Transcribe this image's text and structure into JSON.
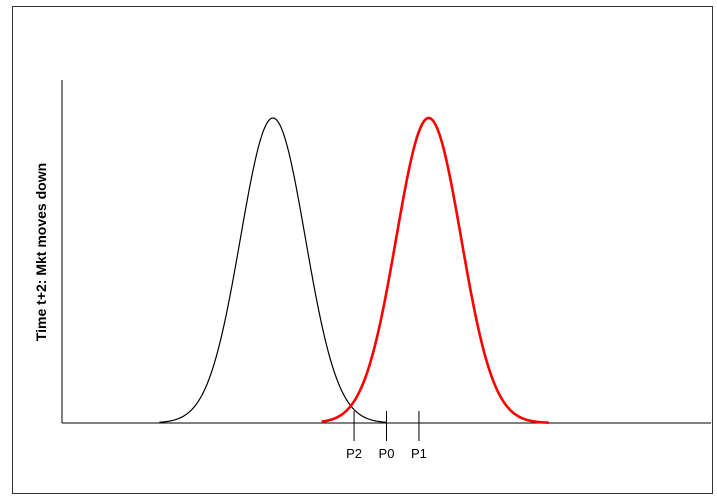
{
  "chart_data": {
    "type": "line",
    "title": "",
    "xlabel": "",
    "ylabel": "Time t+2: Mkt moves down",
    "xlim": [
      -10,
      10
    ],
    "ylim": [
      0,
      1
    ],
    "grid": false,
    "legend": "none",
    "x_ticks": [
      {
        "label": "P2",
        "x": -1.0
      },
      {
        "label": "P0",
        "x": 0.0
      },
      {
        "label": "P1",
        "x": 1.0
      }
    ],
    "series": [
      {
        "color": "#000000",
        "stroke": "thin",
        "shape": "normal",
        "mean": -3.5,
        "sd": 1.0,
        "peak": 1.0,
        "x_range": [
          -7.0,
          0.0
        ]
      },
      {
        "color": "#ff0000",
        "stroke": "thick",
        "shape": "normal",
        "mean": 1.3,
        "sd": 1.0,
        "peak": 1.0,
        "x_range": [
          -2.0,
          5.0
        ]
      }
    ]
  }
}
